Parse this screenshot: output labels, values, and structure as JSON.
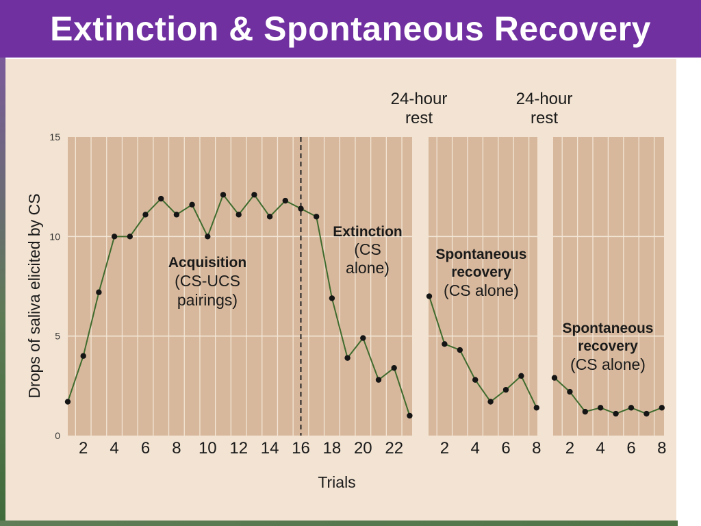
{
  "slide": {
    "title": "Extinction & Spontaneous Recovery"
  },
  "colors": {
    "title_bar": "#7030a0",
    "panel_background": "#f2e3d2",
    "plot_background": "#d7b89c",
    "line": "#3f6b2e",
    "marker": "#151515"
  },
  "chart_data": {
    "type": "line",
    "xlabel": "Trials",
    "ylabel": "Drops of saliva elicited by CS",
    "ylim": [
      0,
      15
    ],
    "yticks": [
      "0",
      "5",
      "10",
      "15"
    ],
    "grid": true,
    "series": [
      {
        "x": [
          1,
          2,
          3,
          4,
          5,
          6,
          7,
          8,
          9,
          10,
          11,
          12,
          13,
          14,
          15,
          16,
          17,
          18,
          19,
          20,
          21,
          22,
          23
        ],
        "values": [
          1.7,
          4.0,
          7.2,
          10.0,
          10.0,
          11.1,
          11.9,
          11.1,
          11.6,
          10.0,
          12.1,
          11.1,
          12.1,
          11.0,
          11.8,
          11.4,
          11.0,
          6.9,
          3.9,
          4.9,
          2.8,
          3.4,
          1.0
        ]
      },
      {
        "x": [
          1,
          2,
          3,
          4,
          5,
          6,
          7,
          8
        ],
        "values": [
          7.0,
          4.6,
          4.3,
          2.8,
          1.7,
          2.3,
          3.0,
          1.4
        ]
      },
      {
        "x": [
          1,
          2,
          3,
          4,
          5,
          6,
          7,
          8
        ],
        "values": [
          2.9,
          2.2,
          1.2,
          1.4,
          1.1,
          1.4,
          1.1,
          1.4
        ]
      }
    ],
    "panel_xticks": [
      [
        "2",
        "4",
        "6",
        "8",
        "10",
        "12",
        "14",
        "16",
        "18",
        "20",
        "22"
      ],
      [
        "2",
        "4",
        "6",
        "8"
      ],
      [
        "2",
        "4",
        "6",
        "8"
      ]
    ],
    "annotations": {
      "acquisition": {
        "title": "Acquisition",
        "line1": "(CS-UCS",
        "line2": "pairings)"
      },
      "extinction": {
        "title": "Extinction",
        "line1": "(CS",
        "line2": "alone)"
      },
      "recovery1": {
        "title1": "Spontaneous",
        "title2": "recovery",
        "line1": "(CS alone)"
      },
      "recovery2": {
        "title1": "Spontaneous",
        "title2": "recovery",
        "line1": "(CS alone)"
      },
      "rest1": {
        "line1": "24-hour",
        "line2": "rest"
      },
      "rest2": {
        "line1": "24-hour",
        "line2": "rest"
      }
    }
  }
}
